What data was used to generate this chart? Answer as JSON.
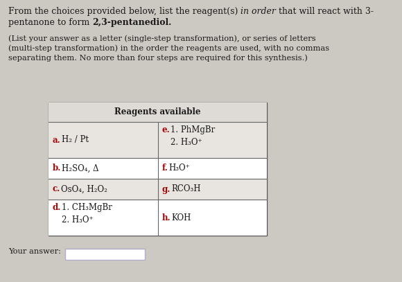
{
  "seg1": "From the choices provided below, list the reagent(s) ",
  "seg2": "in order",
  "seg3": " that will react with 3-",
  "seg4": "pentanone to form ",
  "seg5": "2,3-pentanediol",
  "seg6": ".",
  "subtitle": "(List your answer as a letter (single-step transformation), or series of letters\n(multi-step transformation) in the order the reagents are used, with no commas\nseparating them. No more than four steps are required for this synthesis.)",
  "table_header": "Reagents available",
  "your_answer_label": "Your answer:",
  "bg_color": "#ccc8c2",
  "table_bg": "#ffffff",
  "text_color": "#1a1a1a",
  "red_color": "#aa0000",
  "title_fontsize": 9.0,
  "subtitle_fontsize": 8.2,
  "table_fontsize": 8.5,
  "row0_shade": "#e8e5e1",
  "row1_shade": "#ffffff",
  "row2_shade": "#e8e5e1",
  "row3_shade": "#ffffff",
  "answer_box_color": "#b0aec8"
}
